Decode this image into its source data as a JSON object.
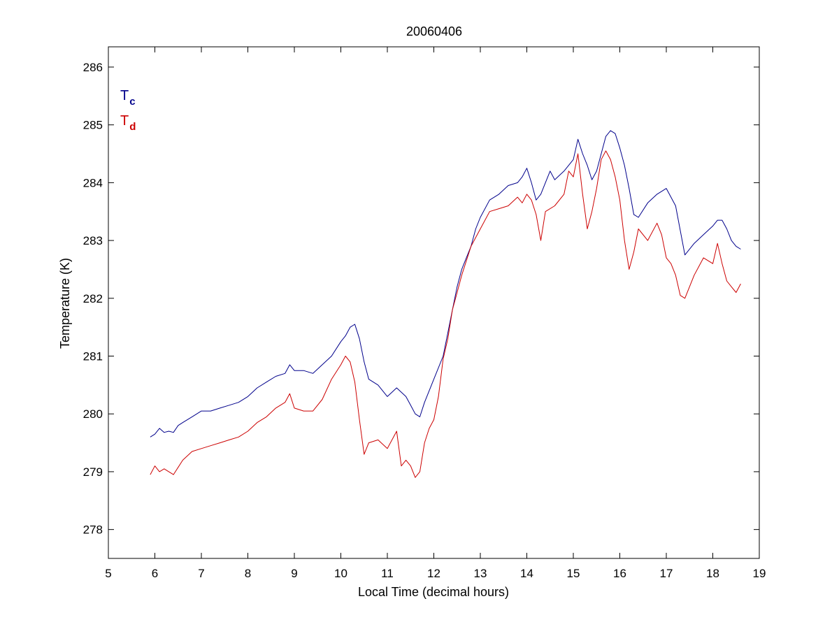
{
  "chart_data": {
    "type": "line",
    "title": "20060406",
    "xlabel": "Local Time (decimal hours)",
    "ylabel": "Temperature (K)",
    "xlim": [
      5,
      19
    ],
    "ylim": [
      277.5,
      286.35
    ],
    "xticks": [
      5,
      6,
      7,
      8,
      9,
      10,
      11,
      12,
      13,
      14,
      15,
      16,
      17,
      18,
      19
    ],
    "yticks": [
      278,
      279,
      280,
      281,
      282,
      283,
      284,
      285,
      286
    ],
    "grid": false,
    "legend_position": "top-left",
    "series": [
      {
        "name_main": "T",
        "name_sub": "c",
        "color": "#00008b",
        "x": [
          5.9,
          6.0,
          6.1,
          6.2,
          6.3,
          6.4,
          6.5,
          6.6,
          6.8,
          7.0,
          7.2,
          7.4,
          7.6,
          7.8,
          8.0,
          8.2,
          8.4,
          8.6,
          8.8,
          8.9,
          9.0,
          9.2,
          9.4,
          9.6,
          9.8,
          10.0,
          10.1,
          10.2,
          10.3,
          10.4,
          10.5,
          10.6,
          10.8,
          11.0,
          11.2,
          11.4,
          11.5,
          11.6,
          11.7,
          11.8,
          12.0,
          12.2,
          12.3,
          12.4,
          12.5,
          12.6,
          12.7,
          12.8,
          12.9,
          13.0,
          13.2,
          13.4,
          13.6,
          13.8,
          13.9,
          14.0,
          14.1,
          14.2,
          14.3,
          14.4,
          14.5,
          14.6,
          14.8,
          15.0,
          15.1,
          15.2,
          15.3,
          15.4,
          15.5,
          15.6,
          15.7,
          15.8,
          15.9,
          16.0,
          16.1,
          16.2,
          16.3,
          16.4,
          16.6,
          16.8,
          16.9,
          17.0,
          17.2,
          17.4,
          17.6,
          17.8,
          18.0,
          18.1,
          18.2,
          18.3,
          18.4,
          18.5,
          18.6
        ],
        "y": [
          279.6,
          279.65,
          279.75,
          279.68,
          279.7,
          279.68,
          279.8,
          279.85,
          279.95,
          280.05,
          280.05,
          280.1,
          280.15,
          280.2,
          280.3,
          280.45,
          280.55,
          280.65,
          280.7,
          280.85,
          280.75,
          280.75,
          280.7,
          280.85,
          281.0,
          281.25,
          281.35,
          281.5,
          281.55,
          281.3,
          280.9,
          280.6,
          280.5,
          280.3,
          280.45,
          280.3,
          280.15,
          280.0,
          279.95,
          280.2,
          280.6,
          281.0,
          281.4,
          281.8,
          282.2,
          282.5,
          282.7,
          282.9,
          283.2,
          283.4,
          283.7,
          283.8,
          283.95,
          284.0,
          284.1,
          284.25,
          284.0,
          283.7,
          283.8,
          284.0,
          284.2,
          284.05,
          284.2,
          284.4,
          284.75,
          284.5,
          284.3,
          284.05,
          284.2,
          284.5,
          284.8,
          284.9,
          284.85,
          284.6,
          284.3,
          283.9,
          283.45,
          283.4,
          283.65,
          283.8,
          283.85,
          283.9,
          283.6,
          282.75,
          282.95,
          283.1,
          283.25,
          283.35,
          283.35,
          283.2,
          283.0,
          282.9,
          282.85
        ]
      },
      {
        "name_main": "T",
        "name_sub": "d",
        "color": "#cc0000",
        "x": [
          5.9,
          6.0,
          6.1,
          6.2,
          6.3,
          6.4,
          6.6,
          6.8,
          7.0,
          7.2,
          7.4,
          7.6,
          7.8,
          8.0,
          8.2,
          8.4,
          8.6,
          8.8,
          8.9,
          9.0,
          9.2,
          9.4,
          9.6,
          9.8,
          10.0,
          10.1,
          10.2,
          10.3,
          10.4,
          10.5,
          10.6,
          10.8,
          11.0,
          11.2,
          11.3,
          11.4,
          11.5,
          11.6,
          11.7,
          11.8,
          11.9,
          12.0,
          12.1,
          12.2,
          12.3,
          12.4,
          12.5,
          12.6,
          12.8,
          13.0,
          13.2,
          13.4,
          13.6,
          13.8,
          13.9,
          14.0,
          14.1,
          14.2,
          14.3,
          14.4,
          14.6,
          14.8,
          14.9,
          15.0,
          15.1,
          15.2,
          15.3,
          15.4,
          15.5,
          15.6,
          15.7,
          15.8,
          15.9,
          16.0,
          16.1,
          16.2,
          16.3,
          16.4,
          16.6,
          16.8,
          16.9,
          17.0,
          17.1,
          17.2,
          17.3,
          17.4,
          17.6,
          17.8,
          18.0,
          18.1,
          18.2,
          18.3,
          18.4,
          18.5,
          18.6
        ],
        "y": [
          278.95,
          279.1,
          279.0,
          279.05,
          279.0,
          278.95,
          279.2,
          279.35,
          279.4,
          279.45,
          279.5,
          279.55,
          279.6,
          279.7,
          279.85,
          279.95,
          280.1,
          280.2,
          280.35,
          280.1,
          280.05,
          280.05,
          280.25,
          280.6,
          280.85,
          281.0,
          280.9,
          280.55,
          279.9,
          279.3,
          279.5,
          279.55,
          279.4,
          279.7,
          279.1,
          279.2,
          279.1,
          278.9,
          279.0,
          279.5,
          279.75,
          279.9,
          280.3,
          280.95,
          281.3,
          281.8,
          282.1,
          282.4,
          282.9,
          283.2,
          283.5,
          283.55,
          283.6,
          283.75,
          283.65,
          283.8,
          283.7,
          283.45,
          283.0,
          283.5,
          283.6,
          283.8,
          284.2,
          284.1,
          284.5,
          283.8,
          283.2,
          283.5,
          283.9,
          284.4,
          284.55,
          284.4,
          284.1,
          283.7,
          283.0,
          282.5,
          282.8,
          283.2,
          283.0,
          283.3,
          283.1,
          282.7,
          282.6,
          282.4,
          282.05,
          282.0,
          282.4,
          282.7,
          282.6,
          282.95,
          282.6,
          282.3,
          282.2,
          282.1,
          282.25
        ]
      }
    ]
  }
}
